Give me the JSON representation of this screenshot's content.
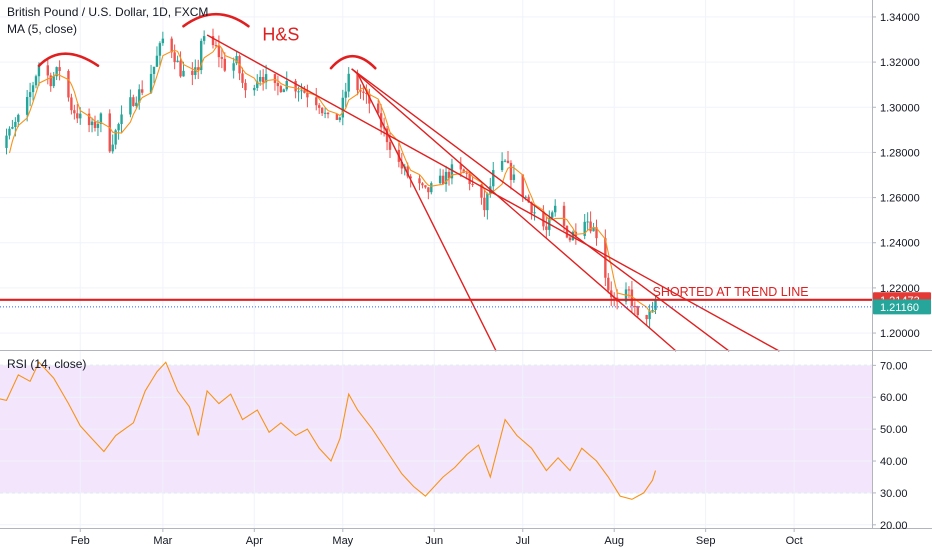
{
  "chart_data": [
    {
      "type": "candlestick",
      "title": "British Pound / U.S. Dollar, 1D, FXCM",
      "overlay_label": "MA (5, close)",
      "ylim": [
        1.1925,
        1.3475
      ],
      "y_ticks": [
        "1.34000",
        "1.32000",
        "1.30000",
        "1.28000",
        "1.26000",
        "1.24000",
        "1.22000",
        "1.20000"
      ],
      "x_ticks": [
        "Feb",
        "Mar",
        "Apr",
        "May",
        "Jun",
        "Jul",
        "Aug",
        "Sep",
        "Oct"
      ],
      "series": [
        {
          "name": "MA (5, close)",
          "color": "#f7931a"
        }
      ],
      "waypoints": [
        [
          "2019-01-02",
          1.268
        ],
        [
          "2019-01-04",
          1.283
        ],
        [
          "2019-01-09",
          1.29
        ],
        [
          "2019-01-14",
          1.302
        ],
        [
          "2019-01-18",
          1.319
        ],
        [
          "2019-01-22",
          1.312
        ],
        [
          "2019-01-25",
          1.317
        ],
        [
          "2019-01-29",
          1.3
        ],
        [
          "2019-02-01",
          1.295
        ],
        [
          "2019-02-05",
          1.291
        ],
        [
          "2019-02-08",
          1.295
        ],
        [
          "2019-02-11",
          1.283
        ],
        [
          "2019-02-14",
          1.292
        ],
        [
          "2019-02-18",
          1.302
        ],
        [
          "2019-02-22",
          1.308
        ],
        [
          "2019-02-26",
          1.318
        ],
        [
          "2019-03-01",
          1.33
        ],
        [
          "2019-03-04",
          1.326
        ],
        [
          "2019-03-07",
          1.316
        ],
        [
          "2019-03-11",
          1.312
        ],
        [
          "2019-03-13",
          1.318
        ],
        [
          "2019-03-14",
          1.33
        ],
        [
          "2019-03-19",
          1.326
        ],
        [
          "2019-03-22",
          1.318
        ],
        [
          "2019-03-26",
          1.32
        ],
        [
          "2019-03-29",
          1.306
        ],
        [
          "2019-04-03",
          1.315
        ],
        [
          "2019-04-08",
          1.308
        ],
        [
          "2019-04-12",
          1.311
        ],
        [
          "2019-04-17",
          1.308
        ],
        [
          "2019-04-23",
          1.302
        ],
        [
          "2019-04-26",
          1.294
        ],
        [
          "2019-04-30",
          1.296
        ],
        [
          "2019-05-03",
          1.313
        ],
        [
          "2019-05-07",
          1.307
        ],
        [
          "2019-05-10",
          1.302
        ],
        [
          "2019-05-14",
          1.292
        ],
        [
          "2019-05-20",
          1.275
        ],
        [
          "2019-05-24",
          1.268
        ],
        [
          "2019-05-29",
          1.262
        ],
        [
          "2019-06-03",
          1.267
        ],
        [
          "2019-06-07",
          1.272
        ],
        [
          "2019-06-12",
          1.27
        ],
        [
          "2019-06-18",
          1.255
        ],
        [
          "2019-06-21",
          1.27
        ],
        [
          "2019-06-25",
          1.275
        ],
        [
          "2019-06-28",
          1.268
        ],
        [
          "2019-07-03",
          1.258
        ],
        [
          "2019-07-09",
          1.245
        ],
        [
          "2019-07-12",
          1.255
        ],
        [
          "2019-07-17",
          1.242
        ],
        [
          "2019-07-22",
          1.252
        ],
        [
          "2019-07-26",
          1.244
        ],
        [
          "2019-07-30",
          1.22
        ],
        [
          "2019-08-02",
          1.212
        ],
        [
          "2019-08-06",
          1.218
        ],
        [
          "2019-08-09",
          1.206
        ],
        [
          "2019-08-12",
          1.208
        ],
        [
          "2019-08-14",
          1.208
        ],
        [
          "2019-08-15",
          1.2146
        ]
      ],
      "ma_label_color": "#f7931a",
      "up_color": "#26a69a",
      "down_color": "#ef5350",
      "trend_lines": [
        {
          "from": [
            "2019-03-16",
            1.332
          ],
          "to": [
            "2019-09-26",
            1.192
          ]
        },
        {
          "from": [
            "2019-05-04",
            1.317
          ],
          "to": [
            "2019-08-22",
            1.192
          ]
        },
        {
          "from": [
            "2019-05-04",
            1.317
          ],
          "to": [
            "2019-09-09",
            1.192
          ]
        },
        {
          "from": [
            "2019-05-06",
            1.315
          ],
          "to": [
            "2019-06-22",
            1.192
          ]
        }
      ],
      "head_shoulders_arcs": [
        {
          "from": "2019-01-18",
          "peak": "2019-01-26",
          "to": "2019-02-07",
          "level": 1.3237
        },
        {
          "from": "2019-03-08",
          "peak": "2019-03-19",
          "to": "2019-03-30",
          "level": 1.3412
        },
        {
          "from": "2019-04-27",
          "peak": "2019-05-04",
          "to": "2019-05-12",
          "level": 1.3226
        }
      ],
      "annotations": [
        {
          "text": "H&S",
          "at": [
            "2019-04-10",
            1.3295
          ],
          "color": "#e02020",
          "size": "large"
        },
        {
          "text": "SHORTED AT TREND LINE",
          "at": [
            "2019-08-14",
            1.2165
          ],
          "color": "#e02020",
          "size": "small"
        }
      ],
      "horizontal_lines": [
        {
          "value": 1.21473,
          "color": "#e02020",
          "style": "solid"
        },
        {
          "value": 1.2116,
          "color": "#2962ff",
          "style": "dotted"
        }
      ],
      "price_tags": [
        {
          "value": 1.21473,
          "text": "1.21473",
          "bg": "#e53935"
        },
        {
          "value": 1.2116,
          "text": "1.21160",
          "bg": "#26a69a"
        }
      ]
    },
    {
      "type": "line",
      "title": "RSI (14, close)",
      "ylim": [
        19.0,
        74.5
      ],
      "y_ticks": [
        "70.00",
        "60.00",
        "50.00",
        "40.00",
        "30.00",
        "20.00"
      ],
      "band": {
        "from": 30,
        "to": 70,
        "color": "#f3e5fc"
      },
      "series": [
        {
          "name": "RSI (14, close)",
          "color": "#f7931a",
          "points": [
            [
              "2019-01-02",
              60
            ],
            [
              "2019-01-07",
              59
            ],
            [
              "2019-01-11",
              67
            ],
            [
              "2019-01-15",
              65
            ],
            [
              "2019-01-18",
              71
            ],
            [
              "2019-01-23",
              66
            ],
            [
              "2019-01-28",
              58
            ],
            [
              "2019-02-01",
              51
            ],
            [
              "2019-02-05",
              47
            ],
            [
              "2019-02-09",
              43
            ],
            [
              "2019-02-13",
              48
            ],
            [
              "2019-02-19",
              52
            ],
            [
              "2019-02-23",
              62
            ],
            [
              "2019-02-27",
              68
            ],
            [
              "2019-03-02",
              71
            ],
            [
              "2019-03-06",
              62
            ],
            [
              "2019-03-10",
              57
            ],
            [
              "2019-03-13",
              48
            ],
            [
              "2019-03-16",
              62
            ],
            [
              "2019-03-20",
              58
            ],
            [
              "2019-03-24",
              61
            ],
            [
              "2019-03-28",
              53
            ],
            [
              "2019-04-02",
              56
            ],
            [
              "2019-04-06",
              49
            ],
            [
              "2019-04-10",
              52
            ],
            [
              "2019-04-15",
              48
            ],
            [
              "2019-04-19",
              50
            ],
            [
              "2019-04-23",
              44
            ],
            [
              "2019-04-27",
              40
            ],
            [
              "2019-04-30",
              47
            ],
            [
              "2019-05-03",
              61
            ],
            [
              "2019-05-06",
              56
            ],
            [
              "2019-05-11",
              50
            ],
            [
              "2019-05-16",
              43
            ],
            [
              "2019-05-21",
              36
            ],
            [
              "2019-05-25",
              32
            ],
            [
              "2019-05-29",
              29
            ],
            [
              "2019-06-04",
              35
            ],
            [
              "2019-06-08",
              38
            ],
            [
              "2019-06-12",
              42
            ],
            [
              "2019-06-16",
              45
            ],
            [
              "2019-06-20",
              35
            ],
            [
              "2019-06-25",
              53
            ],
            [
              "2019-06-29",
              48
            ],
            [
              "2019-07-04",
              44
            ],
            [
              "2019-07-09",
              37
            ],
            [
              "2019-07-13",
              41
            ],
            [
              "2019-07-17",
              37
            ],
            [
              "2019-07-21",
              44
            ],
            [
              "2019-07-26",
              40
            ],
            [
              "2019-07-30",
              35
            ],
            [
              "2019-08-03",
              29
            ],
            [
              "2019-08-07",
              28
            ],
            [
              "2019-08-11",
              30
            ],
            [
              "2019-08-14",
              34
            ],
            [
              "2019-08-15",
              37
            ]
          ]
        }
      ]
    }
  ]
}
